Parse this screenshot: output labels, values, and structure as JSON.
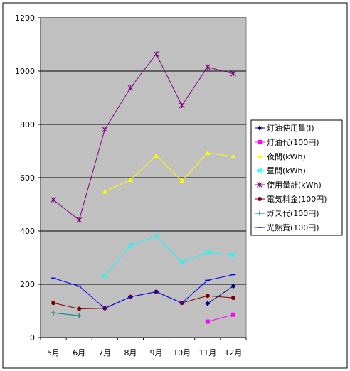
{
  "chart_data": {
    "type": "line",
    "categories": [
      "5月",
      "6月",
      "7月",
      "8月",
      "9月",
      "10月",
      "11月",
      "12月"
    ],
    "ylim": [
      0,
      1200
    ],
    "yticks": [
      0,
      200,
      400,
      600,
      800,
      1000,
      1200
    ],
    "grid": true,
    "legend": "right",
    "plot_background": "#c0c0c0",
    "series": [
      {
        "name": "灯油使用量(l)",
        "color": "#000080",
        "marker": "diamond",
        "values": [
          null,
          null,
          null,
          null,
          null,
          null,
          128,
          193
        ]
      },
      {
        "name": "灯油代(100円)",
        "color": "#ff00ff",
        "marker": "square",
        "values": [
          null,
          null,
          null,
          null,
          null,
          null,
          60,
          86
        ]
      },
      {
        "name": "夜間(kWh)",
        "color": "#ffff00",
        "marker": "triangle",
        "values": [
          null,
          null,
          548,
          592,
          683,
          588,
          693,
          680
        ]
      },
      {
        "name": "昼間(kWh)",
        "color": "#00ffff",
        "marker": "x",
        "values": [
          null,
          null,
          233,
          345,
          381,
          283,
          320,
          310
        ]
      },
      {
        "name": "使用量計(kWh)",
        "color": "#800080",
        "marker": "asterisk",
        "values": [
          517,
          441,
          781,
          937,
          1064,
          871,
          1015,
          990
        ]
      },
      {
        "name": "電気料金(100円)",
        "color": "#800000",
        "marker": "circle",
        "values": [
          130,
          108,
          110,
          153,
          172,
          130,
          157,
          149
        ]
      },
      {
        "name": "ガス代(100円)",
        "color": "#008080",
        "marker": "plus",
        "values": [
          93,
          82,
          null,
          null,
          null,
          null,
          null,
          null
        ]
      },
      {
        "name": "光熱費(100円)",
        "color": "#0000ff",
        "marker": "dash",
        "values": [
          223,
          193,
          110,
          153,
          172,
          130,
          215,
          236
        ]
      }
    ]
  }
}
